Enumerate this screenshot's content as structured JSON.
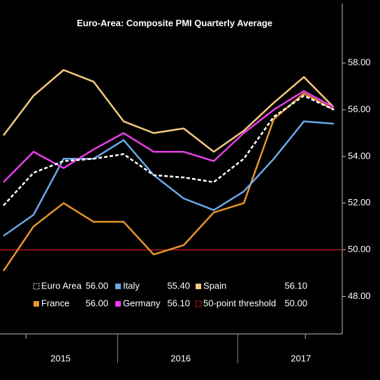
{
  "chart_data": {
    "type": "line",
    "title": "Euro-Area: Composite PMI Quarterly Average",
    "categories": [
      null,
      null,
      null,
      null,
      null,
      null,
      null,
      null,
      null,
      null,
      null,
      null
    ],
    "year_labels": [
      "2015",
      "2016",
      "2017"
    ],
    "ylim": [
      46.4,
      60.4
    ],
    "yticks": [
      {
        "value": 48,
        "label": "48.00"
      },
      {
        "value": 50,
        "label": "50.00"
      },
      {
        "value": 52,
        "label": "52.00"
      },
      {
        "value": 54,
        "label": "54.00"
      },
      {
        "value": 56,
        "label": "56.00"
      },
      {
        "value": 58,
        "label": "58.00"
      }
    ],
    "grid": false,
    "series": [
      {
        "name": "Euro Area",
        "color": "#ffffff",
        "dashed": true,
        "legend_value": "56.00",
        "values": [
          51.9,
          53.3,
          53.8,
          53.9,
          54.1,
          53.2,
          53.1,
          52.9,
          53.9,
          55.7,
          56.6,
          56.0
        ]
      },
      {
        "name": "Italy",
        "color": "#6aa8e8",
        "dashed": false,
        "legend_value": "55.40",
        "values": [
          50.6,
          51.5,
          53.9,
          53.9,
          54.7,
          53.2,
          52.2,
          51.7,
          52.5,
          53.9,
          55.5,
          55.4
        ]
      },
      {
        "name": "Spain",
        "color": "#f5c97e",
        "dashed": false,
        "legend_value": "56.10",
        "values": [
          54.9,
          56.6,
          57.7,
          57.2,
          55.5,
          55.0,
          55.2,
          54.2,
          55.1,
          56.3,
          57.4,
          56.1
        ]
      },
      {
        "name": "France",
        "color": "#e8952c",
        "dashed": false,
        "legend_value": "56.00",
        "values": [
          49.1,
          51.0,
          52.0,
          51.2,
          51.2,
          49.8,
          50.2,
          51.6,
          52.0,
          55.6,
          56.7,
          56.0
        ]
      },
      {
        "name": "Germany",
        "color": "#e83ee8",
        "dashed": false,
        "legend_value": "56.10",
        "values": [
          52.9,
          54.2,
          53.5,
          54.3,
          55.0,
          54.2,
          54.2,
          53.8,
          55.0,
          56.0,
          56.8,
          56.1
        ]
      }
    ],
    "threshold": {
      "name": "50-point threshold",
      "value": 50,
      "label": "50.00",
      "color": "#b01818"
    }
  }
}
